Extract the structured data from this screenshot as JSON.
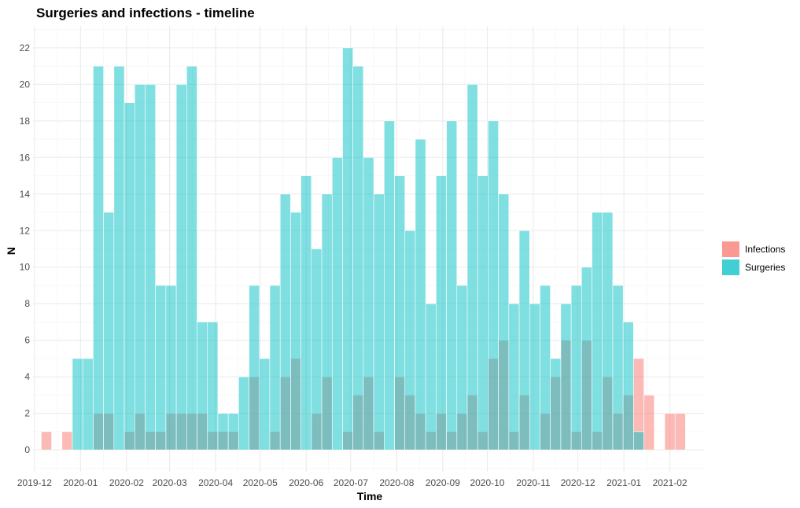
{
  "chart_data": {
    "type": "bar",
    "title": "Surgeries and infections - timeline",
    "xlabel": "Time",
    "ylabel": "N",
    "ylim": [
      -1.2,
      23.2
    ],
    "yticks": [
      0,
      2,
      4,
      6,
      8,
      10,
      12,
      14,
      16,
      18,
      20,
      22
    ],
    "xlim_weeks": [
      "2019-11-30",
      "2021-02-24"
    ],
    "bin": "week",
    "grid": true,
    "legend_position": "right",
    "x_ticks": [
      "2019-12",
      "2020-01",
      "2020-02",
      "2020-03",
      "2020-04",
      "2020-05",
      "2020-06",
      "2020-07",
      "2020-08",
      "2020-09",
      "2020-10",
      "2020-11",
      "2020-12",
      "2021-01",
      "2021-02"
    ],
    "x": [
      "2019-12-09",
      "2019-12-16",
      "2019-12-23",
      "2019-12-30",
      "2020-01-06",
      "2020-01-13",
      "2020-01-20",
      "2020-01-27",
      "2020-02-03",
      "2020-02-10",
      "2020-02-17",
      "2020-02-24",
      "2020-03-02",
      "2020-03-09",
      "2020-03-16",
      "2020-03-23",
      "2020-03-30",
      "2020-04-06",
      "2020-04-13",
      "2020-04-20",
      "2020-04-27",
      "2020-05-04",
      "2020-05-11",
      "2020-05-18",
      "2020-05-25",
      "2020-06-01",
      "2020-06-08",
      "2020-06-15",
      "2020-06-22",
      "2020-06-29",
      "2020-07-06",
      "2020-07-13",
      "2020-07-20",
      "2020-07-27",
      "2020-08-03",
      "2020-08-10",
      "2020-08-17",
      "2020-08-24",
      "2020-08-31",
      "2020-09-07",
      "2020-09-14",
      "2020-09-21",
      "2020-09-28",
      "2020-10-05",
      "2020-10-12",
      "2020-10-19",
      "2020-10-26",
      "2020-11-02",
      "2020-11-09",
      "2020-11-16",
      "2020-11-23",
      "2020-11-30",
      "2020-12-07",
      "2020-12-14",
      "2020-12-21",
      "2020-12-28",
      "2021-01-04",
      "2021-01-11",
      "2021-01-18",
      "2021-01-25",
      "2021-02-01",
      "2021-02-08"
    ],
    "series": [
      {
        "name": "Infections",
        "color": "#F8766D",
        "values": [
          1,
          0,
          1,
          0,
          0,
          2,
          2,
          0,
          1,
          2,
          1,
          1,
          2,
          2,
          2,
          2,
          1,
          1,
          1,
          0,
          4,
          0,
          1,
          4,
          5,
          0,
          2,
          4,
          0,
          1,
          3,
          4,
          1,
          0,
          4,
          3,
          2,
          1,
          2,
          1,
          2,
          3,
          1,
          5,
          6,
          1,
          3,
          0,
          2,
          4,
          6,
          1,
          6,
          1,
          4,
          2,
          3,
          5,
          3,
          0,
          2,
          2
        ]
      },
      {
        "name": "Surgeries",
        "color": "#00BFC4",
        "values": [
          0,
          0,
          0,
          5,
          5,
          21,
          13,
          21,
          19,
          20,
          20,
          9,
          9,
          20,
          21,
          7,
          7,
          2,
          2,
          4,
          9,
          5,
          9,
          14,
          13,
          15,
          11,
          14,
          16,
          22,
          21,
          16,
          14,
          18,
          15,
          12,
          17,
          8,
          15,
          18,
          9,
          20,
          15,
          18,
          14,
          8,
          12,
          8,
          9,
          5,
          8,
          9,
          10,
          13,
          13,
          9,
          7,
          1,
          0,
          0,
          0,
          0
        ]
      }
    ]
  }
}
